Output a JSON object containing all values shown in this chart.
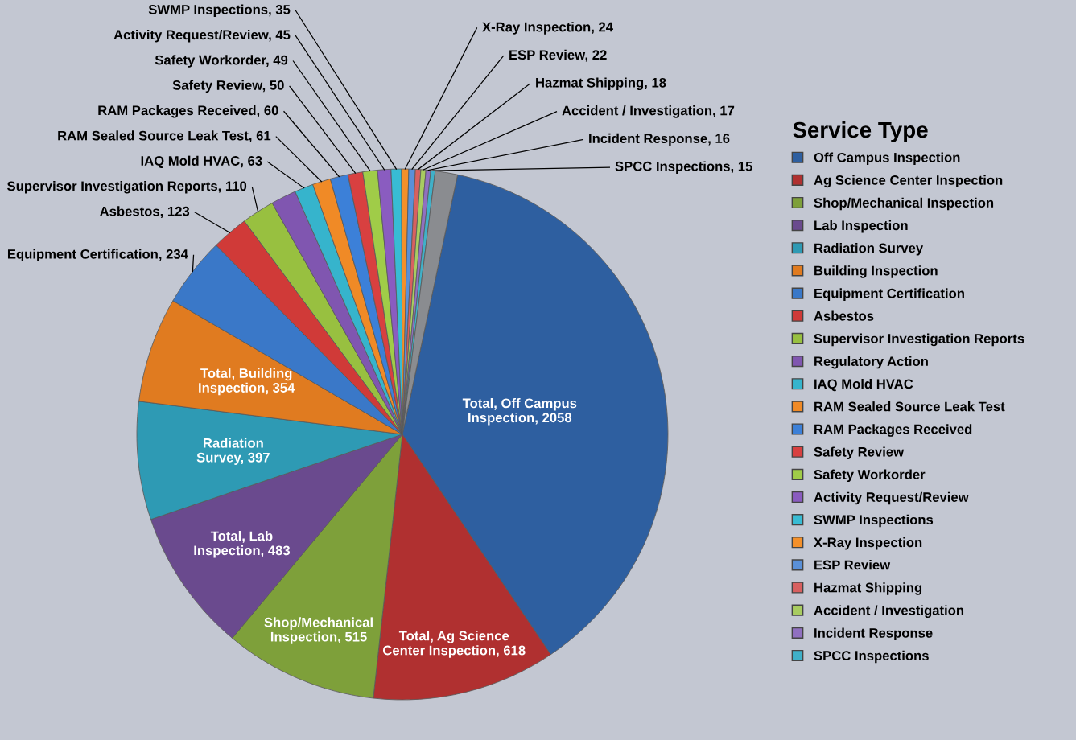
{
  "chart_data": {
    "type": "pie",
    "legend_title": "Service Type",
    "legend": "right",
    "categories": [
      "Off Campus Inspection",
      "Ag Science Center Inspection",
      "Shop/Mechanical Inspection",
      "Lab Inspection",
      "Radiation Survey",
      "Building Inspection",
      "Equipment Certification",
      "Asbestos",
      "Supervisor Investigation Reports",
      "Regulatory Action",
      "IAQ Mold HVAC",
      "RAM Sealed Source Leak Test",
      "RAM Packages Received",
      "Safety Review",
      "Safety Workorder",
      "Activity Request/Review",
      "SWMP Inspections",
      "X-Ray Inspection",
      "ESP Review",
      "Hazmat Shipping",
      "Accident / Investigation",
      "Incident Response",
      "SPCC Inspections",
      null
    ],
    "values": [
      2058,
      618,
      515,
      483,
      397,
      354,
      234,
      123,
      110,
      85,
      63,
      61,
      60,
      50,
      49,
      45,
      35,
      24,
      22,
      18,
      17,
      16,
      15,
      75
    ],
    "colors": [
      "#2e5fa0",
      "#b03030",
      "#7ea03a",
      "#6a4a8e",
      "#2e9ab4",
      "#e07b20",
      "#3a78c8",
      "#d03a38",
      "#98c040",
      "#8056b0",
      "#36b4cc",
      "#f08a26",
      "#3c80d8",
      "#d84040",
      "#a0cc48",
      "#8a5cc0",
      "#38bcd4",
      "#f4902a",
      "#5a90d8",
      "#d86060",
      "#a8cc60",
      "#9070c0",
      "#40b0c8",
      "#8a8c90"
    ],
    "value_labels": [
      "Total, Off Campus Inspection, 2058",
      "Total, Ag Science Center Inspection, 618",
      "Shop/Mechanical Inspection, 515",
      "Total, Lab Inspection, 483",
      "Radiation Survey, 397",
      "Total, Building Inspection, 354",
      "Equipment Certification, 234",
      "Asbestos, 123",
      "Supervisor Investigation Reports, 110",
      null,
      "IAQ Mold HVAC, 63",
      "RAM Sealed Source Leak Test, 61",
      "RAM Packages Received, 60",
      "Safety Review, 50",
      "Safety Workorder, 49",
      "Activity Request/Review, 45",
      "SWMP Inspections, 35",
      "X-Ray Inspection, 24",
      "ESP Review, 22",
      "Hazmat Shipping, 18",
      "Accident / Investigation, 17",
      "Incident Response, 16",
      "SPCC Inspections, 15",
      null
    ]
  }
}
